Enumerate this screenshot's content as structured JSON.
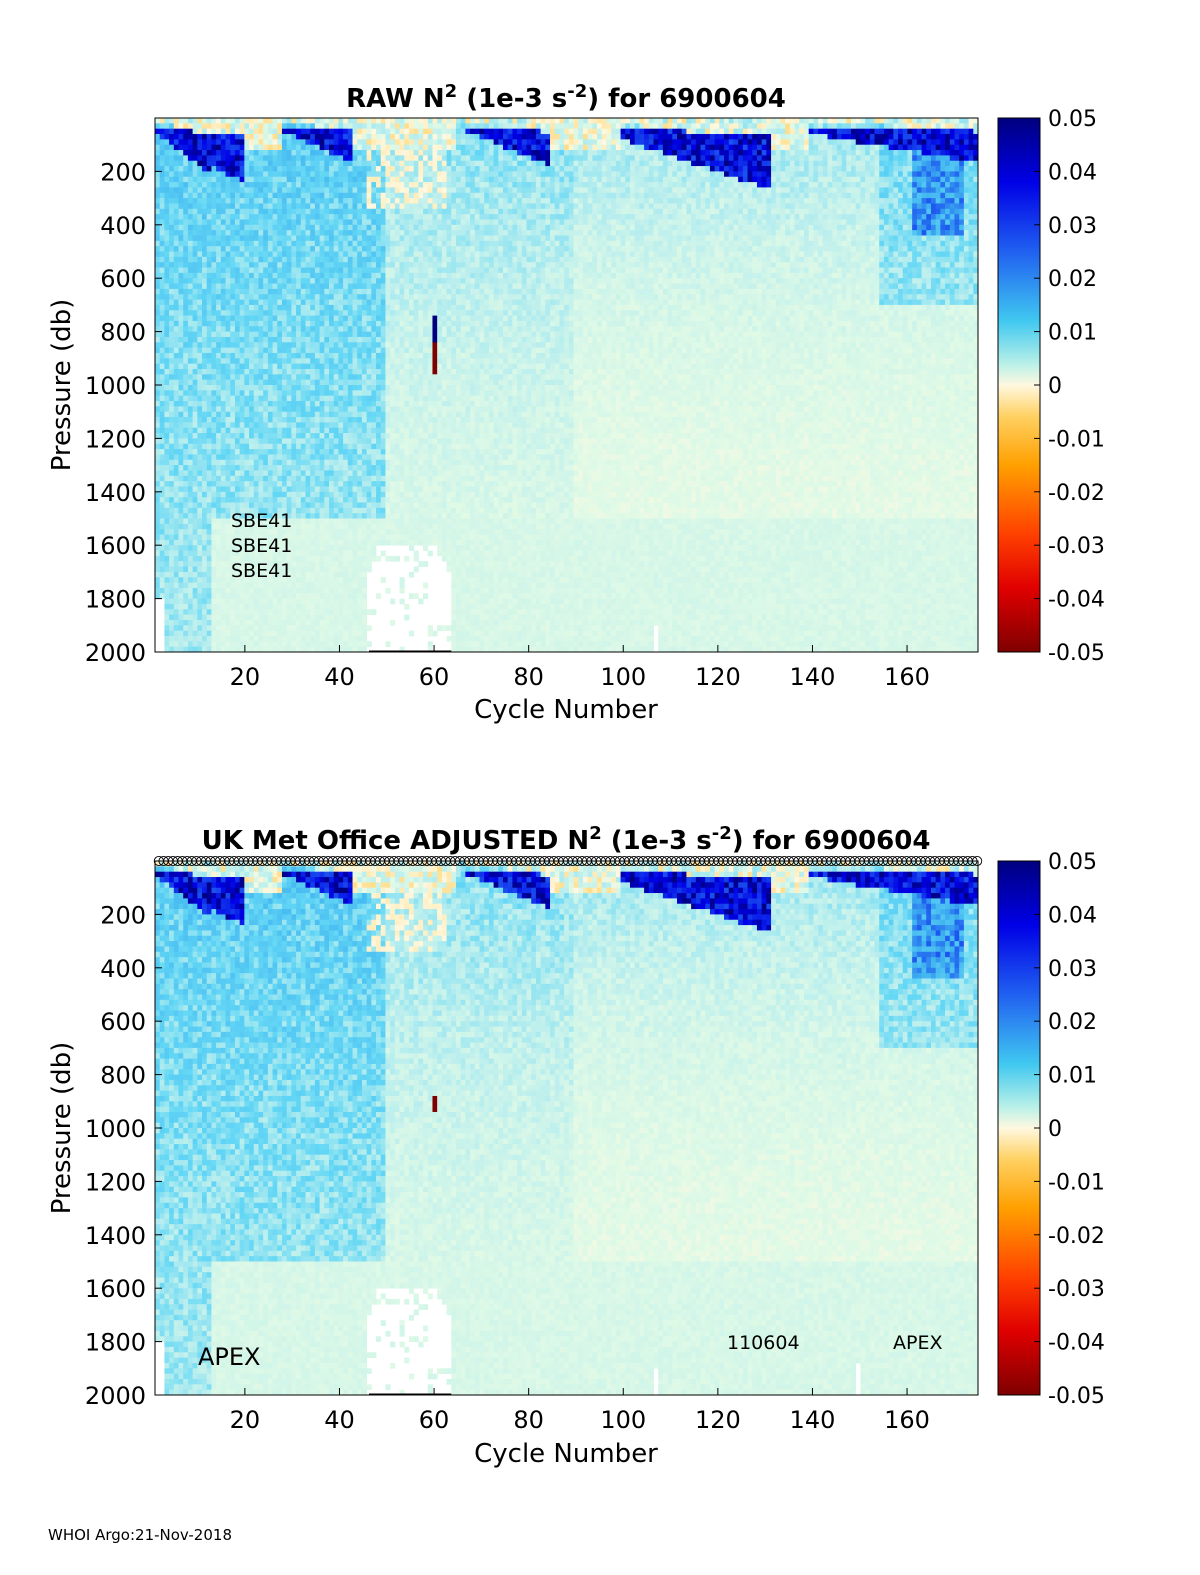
{
  "footer": "WHOI Argo:21-Nov-2018",
  "chart_data": [
    {
      "type": "heatmap",
      "title_prefix": "RAW N",
      "title_sup1": "2",
      "title_mid": " (1e-3 s",
      "title_sup2": "-2",
      "title_suffix": ") for 6900604",
      "xlabel": "Cycle Number",
      "ylabel": "Pressure (db)",
      "xlim": [
        1,
        175
      ],
      "ylim": [
        0,
        2000
      ],
      "y_reversed": true,
      "xticks": [
        20,
        40,
        60,
        80,
        100,
        120,
        140,
        160
      ],
      "yticks": [
        200,
        400,
        600,
        800,
        1000,
        1200,
        1400,
        1600,
        1800,
        2000
      ],
      "colorbar": {
        "min": -0.05,
        "max": 0.05,
        "ticks": [
          "0.05",
          "0.04",
          "0.03",
          "0.02",
          "0.01",
          "0",
          "-0.01",
          "-0.02",
          "-0.03",
          "-0.04",
          "-0.05"
        ],
        "colormap": "jet-like diverging, pale center at 0"
      },
      "annotations": [
        "SBE41",
        "SBE41",
        "SBE41"
      ],
      "qc_markers": false,
      "features": {
        "surface_stratification": "high positive N2 (dark blue) 0-300 db at cycles 1-20, 28-42, 65-80, 105-130, 140-175",
        "spike": {
          "cycle": 60,
          "pressure_range": [
            750,
            950
          ],
          "values": [
            0.05,
            -0.05
          ]
        },
        "deep_gap_cycles": [
          46,
          63
        ],
        "deep_gap_pressure_min": 1600
      }
    },
    {
      "type": "heatmap",
      "title_prefix": "UK Met Office  ADJUSTED N",
      "title_sup1": "2",
      "title_mid": " (1e-3 s",
      "title_sup2": "-2",
      "title_suffix": ") for 6900604",
      "xlabel": "Cycle Number",
      "ylabel": "Pressure (db)",
      "xlim": [
        1,
        175
      ],
      "ylim": [
        0,
        2000
      ],
      "y_reversed": true,
      "xticks": [
        20,
        40,
        60,
        80,
        100,
        120,
        140,
        160
      ],
      "yticks": [
        200,
        400,
        600,
        800,
        1000,
        1200,
        1400,
        1600,
        1800,
        2000
      ],
      "colorbar": {
        "min": -0.05,
        "max": 0.05,
        "ticks": [
          "0.05",
          "0.04",
          "0.03",
          "0.02",
          "0.01",
          "0",
          "-0.01",
          "-0.02",
          "-0.03",
          "-0.04",
          "-0.05"
        ],
        "colormap": "jet-like diverging, pale center at 0"
      },
      "annotations": [
        "APEX",
        "110604",
        "APEX"
      ],
      "qc_markers": true,
      "features": {
        "spike": {
          "cycle": 60,
          "pressure_range": [
            880,
            940
          ],
          "values": [
            -0.05
          ]
        },
        "deep_gap_cycles": [
          46,
          63
        ],
        "deep_gap_pressure_min": 1600
      }
    }
  ]
}
